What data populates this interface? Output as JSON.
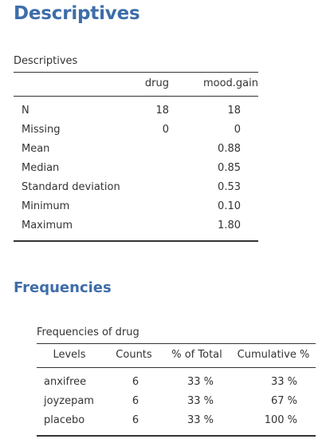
{
  "descriptives": {
    "heading": "Descriptives",
    "table_title": "Descriptives",
    "columns": [
      "",
      "drug",
      "mood.gain"
    ],
    "rows": [
      {
        "label": "N",
        "drug": "18",
        "mood_gain": "18"
      },
      {
        "label": "Missing",
        "drug": "0",
        "mood_gain": "0"
      },
      {
        "label": "Mean",
        "drug": "",
        "mood_gain": "0.88"
      },
      {
        "label": "Median",
        "drug": "",
        "mood_gain": "0.85"
      },
      {
        "label": "Standard deviation",
        "drug": "",
        "mood_gain": "0.53"
      },
      {
        "label": "Minimum",
        "drug": "",
        "mood_gain": "0.10"
      },
      {
        "label": "Maximum",
        "drug": "",
        "mood_gain": "1.80"
      }
    ]
  },
  "frequencies": {
    "heading": "Frequencies",
    "table_title": "Frequencies of drug",
    "columns": [
      "Levels",
      "Counts",
      "% of Total",
      "Cumulative %"
    ],
    "rows": [
      {
        "level": "anxifree",
        "counts": "6",
        "pct_total": "33 %",
        "cumulative": "33 %"
      },
      {
        "level": "joyzepam",
        "counts": "6",
        "pct_total": "33 %",
        "cumulative": "67 %"
      },
      {
        "level": "placebo",
        "counts": "6",
        "pct_total": "33 %",
        "cumulative": "100 %"
      }
    ]
  },
  "colors": {
    "heading": "#3e6da9",
    "text": "#333333",
    "rule": "#333333"
  }
}
